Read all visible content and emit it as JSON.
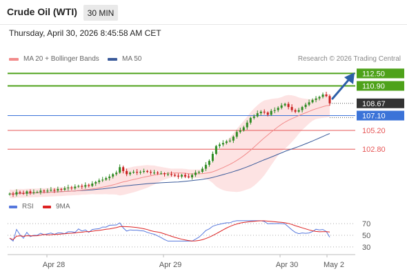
{
  "header": {
    "title": "Crude Oil (WTI)",
    "timeframe": "30 MIN",
    "datetime": "Thursday, April 30, 2026 8:45:58 AM CET"
  },
  "legend": {
    "ma20_label": "MA 20 + Bollinger Bands",
    "ma50_label": "MA 50",
    "credit": "Research © 2026 Trading Central"
  },
  "rsi_legend": {
    "rsi_label": "RSI",
    "ma_label": "9MA"
  },
  "colors": {
    "green": "#4ea21a",
    "blue": "#3b73d8",
    "red": "#e65555",
    "current_box": "#333333",
    "candle_up": "#2e8b22",
    "candle_down": "#c81e1e",
    "bollinger_fill": "#fde3e3",
    "ma20": "#f28b8b",
    "ma50": "#3a5a9a",
    "rsi": "#5577dd",
    "rsi_ma": "#dd2222",
    "arrow": "#2d5fa8"
  },
  "levels": [
    {
      "value": "112.50",
      "kind": "target"
    },
    {
      "value": "110.90",
      "kind": "target"
    },
    {
      "value": "108.67",
      "kind": "current"
    },
    {
      "value": "107.10",
      "kind": "pivot"
    },
    {
      "value": "105.20",
      "kind": "support"
    },
    {
      "value": "102.80",
      "kind": "support"
    }
  ],
  "rsi_ticks": [
    "70",
    "50",
    "30"
  ],
  "x_labels": [
    "Apr 28",
    "Apr 29",
    "Apr 30",
    "May 2"
  ],
  "chart_data": {
    "type": "candlestick",
    "price_axis": {
      "ticks": [
        112.5,
        110.9,
        108.67,
        107.1,
        105.2,
        102.8
      ]
    },
    "closes": [
      97.1,
      97.0,
      97.3,
      97.2,
      97.1,
      97.4,
      97.2,
      97.3,
      97.3,
      97.5,
      97.4,
      97.5,
      97.6,
      97.5,
      97.7,
      97.6,
      97.8,
      97.9,
      97.8,
      98.0,
      98.1,
      98.0,
      98.2,
      98.1,
      98.4,
      98.6,
      98.8,
      98.9,
      99.1,
      99.3,
      99.6,
      99.8,
      100.5,
      100.0,
      99.6,
      99.8,
      99.9,
      99.8,
      99.9,
      100.0,
      99.9,
      99.8,
      99.8,
      99.7,
      99.7,
      99.6,
      99.6,
      99.5,
      99.4,
      99.3,
      99.5,
      99.3,
      99.2,
      99.5,
      99.8,
      99.9,
      100.3,
      100.8,
      101.3,
      102.2,
      103.2,
      103.4,
      103.6,
      103.8,
      103.9,
      104.4,
      105.0,
      105.2,
      105.6,
      106.2,
      106.8,
      107.0,
      107.4,
      107.6,
      107.5,
      107.2,
      107.7,
      107.8,
      108.1,
      108.4,
      108.6,
      108.2,
      107.8,
      107.6,
      107.8,
      108.2,
      108.5,
      108.8,
      109.1,
      109.3,
      109.5,
      109.8,
      109.6,
      108.67
    ],
    "rsi_range": [
      30,
      70
    ]
  }
}
